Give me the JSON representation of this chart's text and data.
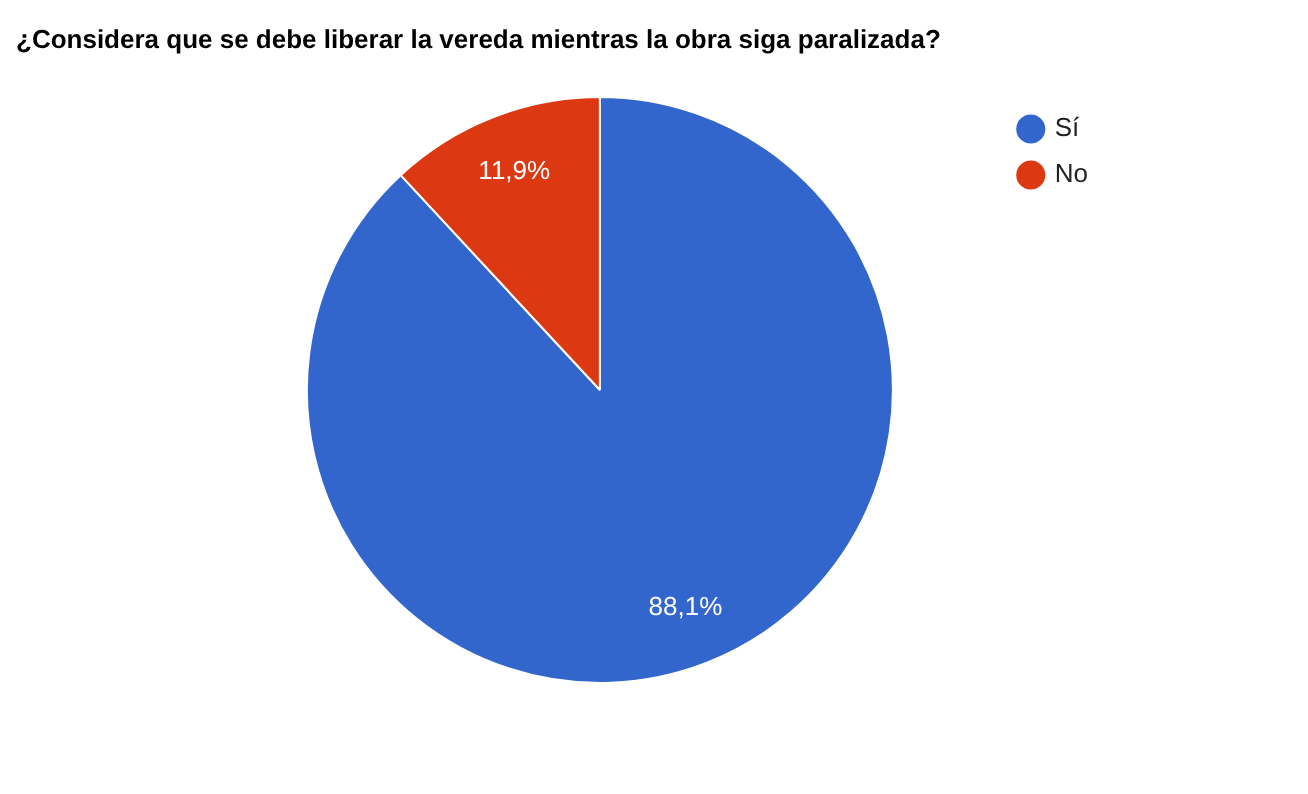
{
  "chart_data": {
    "type": "pie",
    "title": "¿Considera que se debe liberar la vereda mientras la obra siga paralizada?",
    "categories": [
      "Sí",
      "No"
    ],
    "values": [
      88.1,
      11.9
    ],
    "colors": [
      "#3366cc",
      "#dc3912"
    ],
    "value_labels": [
      "88,1%",
      "11,9%"
    ],
    "legend": "top right"
  }
}
